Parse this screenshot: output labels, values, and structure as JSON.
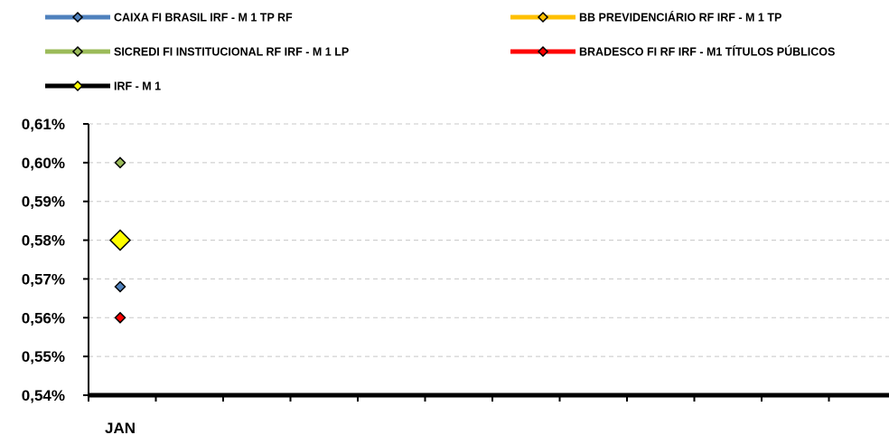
{
  "chart_data": {
    "type": "scatter",
    "title": "",
    "xlabel": "",
    "ylabel": "",
    "categories": [
      "JAN",
      "",
      "",
      "",
      "",
      "",
      "",
      "",
      "",
      "",
      "",
      ""
    ],
    "ylim": [
      0.0054,
      0.0061
    ],
    "yticks": [
      0.0054,
      0.0055,
      0.0056,
      0.0057,
      0.0058,
      0.0059,
      0.006,
      0.0061
    ],
    "ytick_labels": [
      "0,54%",
      "0,55%",
      "0,56%",
      "0,57%",
      "0,58%",
      "0,59%",
      "0,60%",
      "0,61%"
    ],
    "grid": true,
    "legend_position": "top",
    "series": [
      {
        "name": "CAIXA FI BRASIL IRF - M 1 TP RF",
        "color": "#4f81bd",
        "marker_color": "#4f81bd",
        "values": [
          0.00568
        ]
      },
      {
        "name": "BB PREVIDENCIÁRIO RF IRF - M 1 TP",
        "color": "#ffc000",
        "marker_color": "#ffc000",
        "values": [
          null
        ]
      },
      {
        "name": "SICREDI FI INSTITUCIONAL RF IRF - M 1 LP",
        "color": "#9bbb59",
        "marker_color": "#9bbb59",
        "values": [
          0.006
        ]
      },
      {
        "name": "BRADESCO FI RF IRF - M1 TÍTULOS PÚBLICOS",
        "color": "#ff0000",
        "marker_color": "#ff0000",
        "values": [
          0.0056
        ]
      },
      {
        "name": "IRF - M 1",
        "color": "#000000",
        "marker_color": "#ffff00",
        "values": [
          0.0058
        ],
        "marker": "large"
      }
    ]
  }
}
